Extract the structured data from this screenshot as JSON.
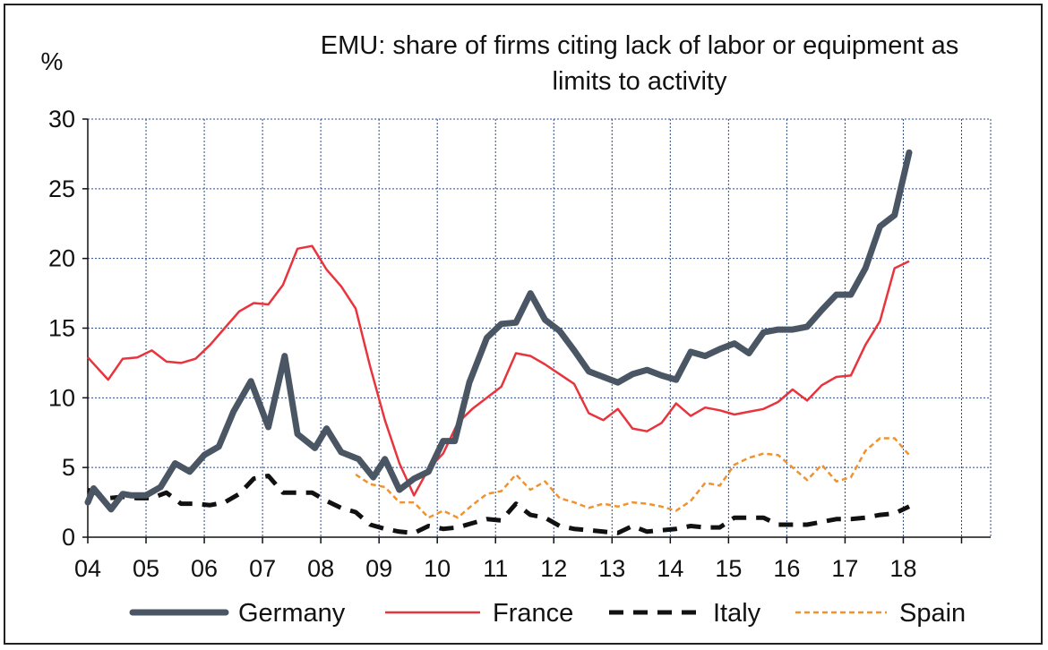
{
  "chart_data": {
    "type": "line",
    "title_lines": [
      "EMU: share of firms citing lack of labor or equipment as",
      "limits to activity"
    ],
    "ylabel": "%",
    "ylim": [
      0,
      30
    ],
    "y_ticks": [
      0,
      5,
      10,
      15,
      20,
      25,
      30
    ],
    "xlim": [
      2004,
      2019.5
    ],
    "x_tick_labels": [
      "04",
      "05",
      "06",
      "07",
      "08",
      "09",
      "10",
      "11",
      "12",
      "13",
      "14",
      "15",
      "16",
      "17",
      "18"
    ],
    "x_tick_years": [
      2004,
      2005,
      2006,
      2007,
      2008,
      2009,
      2010,
      2011,
      2012,
      2013,
      2014,
      2015,
      2016,
      2017,
      2018
    ],
    "grid": true,
    "legend_position": "bottom",
    "series": [
      {
        "name": "Germany",
        "color": "#4a5663",
        "style": "thick",
        "points": [
          [
            2004.0,
            2.5
          ],
          [
            2004.1,
            3.5
          ],
          [
            2004.4,
            2.0
          ],
          [
            2004.6,
            3.1
          ],
          [
            2004.75,
            3.0
          ],
          [
            2005.0,
            3.0
          ],
          [
            2005.25,
            3.6
          ],
          [
            2005.5,
            5.3
          ],
          [
            2005.75,
            4.7
          ],
          [
            2006.0,
            5.9
          ],
          [
            2006.25,
            6.5
          ],
          [
            2006.5,
            9.0
          ],
          [
            2006.8,
            11.2
          ],
          [
            2007.1,
            7.9
          ],
          [
            2007.38,
            13.0
          ],
          [
            2007.6,
            7.4
          ],
          [
            2007.9,
            6.4
          ],
          [
            2008.1,
            7.8
          ],
          [
            2008.35,
            6.1
          ],
          [
            2008.65,
            5.6
          ],
          [
            2008.9,
            4.3
          ],
          [
            2009.1,
            5.6
          ],
          [
            2009.35,
            3.4
          ],
          [
            2009.6,
            4.2
          ],
          [
            2009.85,
            4.7
          ],
          [
            2010.1,
            6.9
          ],
          [
            2010.3,
            6.9
          ],
          [
            2010.55,
            11.1
          ],
          [
            2010.85,
            14.3
          ],
          [
            2011.1,
            15.3
          ],
          [
            2011.35,
            15.4
          ],
          [
            2011.6,
            17.5
          ],
          [
            2011.85,
            15.6
          ],
          [
            2012.1,
            14.8
          ],
          [
            2012.35,
            13.4
          ],
          [
            2012.6,
            11.9
          ],
          [
            2012.85,
            11.5
          ],
          [
            2013.1,
            11.1
          ],
          [
            2013.35,
            11.7
          ],
          [
            2013.6,
            12.0
          ],
          [
            2013.85,
            11.6
          ],
          [
            2014.1,
            11.3
          ],
          [
            2014.35,
            13.3
          ],
          [
            2014.6,
            13.0
          ],
          [
            2014.85,
            13.5
          ],
          [
            2015.1,
            13.9
          ],
          [
            2015.35,
            13.2
          ],
          [
            2015.6,
            14.7
          ],
          [
            2015.85,
            14.9
          ],
          [
            2016.1,
            14.9
          ],
          [
            2016.35,
            15.1
          ],
          [
            2016.6,
            16.3
          ],
          [
            2016.85,
            17.4
          ],
          [
            2017.1,
            17.4
          ],
          [
            2017.35,
            19.3
          ],
          [
            2017.6,
            22.3
          ],
          [
            2017.85,
            23.1
          ],
          [
            2018.1,
            27.6
          ]
        ]
      },
      {
        "name": "France",
        "color": "#e8343c",
        "style": "solid",
        "points": [
          [
            2004.0,
            12.9
          ],
          [
            2004.35,
            11.3
          ],
          [
            2004.6,
            12.8
          ],
          [
            2004.85,
            12.9
          ],
          [
            2005.1,
            13.4
          ],
          [
            2005.35,
            12.6
          ],
          [
            2005.6,
            12.5
          ],
          [
            2005.85,
            12.8
          ],
          [
            2006.1,
            13.8
          ],
          [
            2006.35,
            15.0
          ],
          [
            2006.6,
            16.2
          ],
          [
            2006.85,
            16.8
          ],
          [
            2007.1,
            16.7
          ],
          [
            2007.35,
            18.1
          ],
          [
            2007.6,
            20.7
          ],
          [
            2007.85,
            20.9
          ],
          [
            2008.1,
            19.2
          ],
          [
            2008.35,
            18.0
          ],
          [
            2008.6,
            16.4
          ],
          [
            2008.85,
            12.2
          ],
          [
            2009.1,
            8.4
          ],
          [
            2009.35,
            5.3
          ],
          [
            2009.6,
            3.0
          ],
          [
            2009.85,
            4.9
          ],
          [
            2010.1,
            6.0
          ],
          [
            2010.35,
            8.2
          ],
          [
            2010.6,
            9.2
          ],
          [
            2010.85,
            10.0
          ],
          [
            2011.1,
            10.8
          ],
          [
            2011.35,
            13.2
          ],
          [
            2011.6,
            13.0
          ],
          [
            2011.85,
            12.4
          ],
          [
            2012.1,
            11.7
          ],
          [
            2012.35,
            11.0
          ],
          [
            2012.6,
            8.9
          ],
          [
            2012.85,
            8.4
          ],
          [
            2013.1,
            9.2
          ],
          [
            2013.35,
            7.8
          ],
          [
            2013.6,
            7.6
          ],
          [
            2013.85,
            8.2
          ],
          [
            2014.1,
            9.6
          ],
          [
            2014.35,
            8.7
          ],
          [
            2014.6,
            9.3
          ],
          [
            2014.85,
            9.1
          ],
          [
            2015.1,
            8.8
          ],
          [
            2015.35,
            9.0
          ],
          [
            2015.6,
            9.2
          ],
          [
            2015.85,
            9.7
          ],
          [
            2016.1,
            10.6
          ],
          [
            2016.35,
            9.8
          ],
          [
            2016.6,
            10.9
          ],
          [
            2016.85,
            11.5
          ],
          [
            2017.1,
            11.6
          ],
          [
            2017.35,
            13.8
          ],
          [
            2017.6,
            15.5
          ],
          [
            2017.85,
            19.3
          ],
          [
            2018.1,
            19.8
          ]
        ]
      },
      {
        "name": "Italy",
        "color": "#111111",
        "style": "dashed-thick",
        "points": [
          [
            2004.0,
            3.4
          ],
          [
            2004.35,
            2.8
          ],
          [
            2004.6,
            2.9
          ],
          [
            2004.85,
            2.8
          ],
          [
            2005.1,
            2.8
          ],
          [
            2005.35,
            3.2
          ],
          [
            2005.6,
            2.4
          ],
          [
            2005.85,
            2.4
          ],
          [
            2006.1,
            2.3
          ],
          [
            2006.35,
            2.5
          ],
          [
            2006.6,
            3.1
          ],
          [
            2006.85,
            4.2
          ],
          [
            2007.1,
            4.4
          ],
          [
            2007.35,
            3.2
          ],
          [
            2007.6,
            3.2
          ],
          [
            2007.85,
            3.2
          ],
          [
            2008.1,
            2.6
          ],
          [
            2008.35,
            2.1
          ],
          [
            2008.6,
            1.8
          ],
          [
            2008.85,
            0.9
          ],
          [
            2009.1,
            0.6
          ],
          [
            2009.35,
            0.4
          ],
          [
            2009.6,
            0.3
          ],
          [
            2009.85,
            0.8
          ],
          [
            2010.1,
            0.6
          ],
          [
            2010.35,
            0.7
          ],
          [
            2010.6,
            1.0
          ],
          [
            2010.85,
            1.3
          ],
          [
            2011.1,
            1.2
          ],
          [
            2011.35,
            2.4
          ],
          [
            2011.6,
            1.6
          ],
          [
            2011.85,
            1.4
          ],
          [
            2012.1,
            0.8
          ],
          [
            2012.35,
            0.6
          ],
          [
            2012.6,
            0.5
          ],
          [
            2012.85,
            0.4
          ],
          [
            2013.1,
            0.3
          ],
          [
            2013.35,
            0.8
          ],
          [
            2013.6,
            0.4
          ],
          [
            2013.85,
            0.5
          ],
          [
            2014.1,
            0.6
          ],
          [
            2014.35,
            0.8
          ],
          [
            2014.6,
            0.7
          ],
          [
            2014.85,
            0.7
          ],
          [
            2015.1,
            1.4
          ],
          [
            2015.35,
            1.4
          ],
          [
            2015.6,
            1.4
          ],
          [
            2015.85,
            0.9
          ],
          [
            2016.1,
            0.9
          ],
          [
            2016.35,
            0.9
          ],
          [
            2016.6,
            1.1
          ],
          [
            2016.85,
            1.3
          ],
          [
            2017.1,
            1.3
          ],
          [
            2017.35,
            1.4
          ],
          [
            2017.6,
            1.6
          ],
          [
            2017.85,
            1.7
          ],
          [
            2018.1,
            2.2
          ]
        ]
      },
      {
        "name": "Spain",
        "color": "#f0922e",
        "style": "dashed",
        "points": [
          [
            2008.6,
            4.5
          ],
          [
            2008.85,
            3.8
          ],
          [
            2009.1,
            3.6
          ],
          [
            2009.35,
            2.5
          ],
          [
            2009.6,
            2.5
          ],
          [
            2009.85,
            1.4
          ],
          [
            2010.1,
            1.9
          ],
          [
            2010.35,
            1.4
          ],
          [
            2010.6,
            2.3
          ],
          [
            2010.85,
            3.1
          ],
          [
            2011.1,
            3.3
          ],
          [
            2011.35,
            4.5
          ],
          [
            2011.6,
            3.4
          ],
          [
            2011.85,
            4.0
          ],
          [
            2012.1,
            2.8
          ],
          [
            2012.35,
            2.5
          ],
          [
            2012.6,
            2.1
          ],
          [
            2012.85,
            2.4
          ],
          [
            2013.1,
            2.2
          ],
          [
            2013.35,
            2.5
          ],
          [
            2013.6,
            2.4
          ],
          [
            2013.85,
            2.2
          ],
          [
            2014.1,
            1.9
          ],
          [
            2014.35,
            2.6
          ],
          [
            2014.6,
            3.9
          ],
          [
            2014.85,
            3.7
          ],
          [
            2015.1,
            5.2
          ],
          [
            2015.35,
            5.7
          ],
          [
            2015.6,
            6.0
          ],
          [
            2015.85,
            5.9
          ],
          [
            2016.1,
            5.0
          ],
          [
            2016.35,
            4.1
          ],
          [
            2016.6,
            5.2
          ],
          [
            2016.85,
            4.0
          ],
          [
            2017.1,
            4.3
          ],
          [
            2017.35,
            6.2
          ],
          [
            2017.6,
            7.1
          ],
          [
            2017.85,
            7.1
          ],
          [
            2018.1,
            5.9
          ]
        ]
      }
    ]
  }
}
